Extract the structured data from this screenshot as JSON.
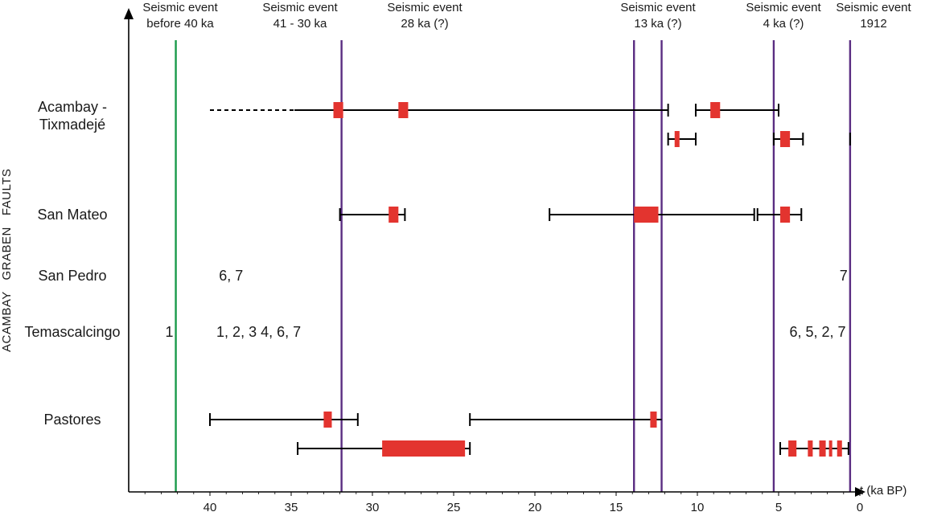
{
  "chart_data": {
    "type": "timeline",
    "group_label": "ACAMBAY   GRABEN   FAULTS",
    "xlabel": "t (ka BP)",
    "xlim": [
      44.5,
      -0.5
    ],
    "xticks": [
      40,
      35,
      30,
      25,
      20,
      15,
      10,
      5,
      0
    ],
    "tick_labels": [
      "40",
      "35",
      "30",
      "25",
      "20",
      "15",
      "10",
      "5",
      "0"
    ],
    "faults": [
      {
        "id": "acambay",
        "lines": [
          "Acambay -",
          "Tixmadejé"
        ]
      },
      {
        "id": "san-mateo",
        "lines": [
          "San Mateo"
        ]
      },
      {
        "id": "san-pedro",
        "lines": [
          "San Pedro"
        ]
      },
      {
        "id": "temascalcingo",
        "lines": [
          "Temascalcingo"
        ]
      },
      {
        "id": "pastores",
        "lines": [
          "Pastores"
        ]
      }
    ],
    "events": [
      {
        "id": "before-40",
        "lines": [
          "Seismic event",
          "before 40 ka"
        ],
        "t": 42.1,
        "color": "#1a9a4a"
      },
      {
        "id": "41-30",
        "lines": [
          "Seismic event",
          "41 - 30 ka"
        ],
        "t": 31.9,
        "color": "#5a2d82"
      },
      {
        "id": "28",
        "lines": [
          "Seismic event",
          "28 ka (?)"
        ],
        "t": null,
        "color": "#5a2d82"
      },
      {
        "id": "13",
        "lines": [
          "Seismic event",
          "13 ka (?)"
        ],
        "t": [
          13.9,
          12.2
        ],
        "color": "#5a2d82"
      },
      {
        "id": "4",
        "lines": [
          "Seismic event",
          "4 ka (?)"
        ],
        "t": 5.3,
        "color": "#5a2d82"
      },
      {
        "id": "1912",
        "lines": [
          "Seismic event",
          "1912"
        ],
        "t": 0.6,
        "color": "#5a2d82"
      }
    ],
    "ranges": [
      {
        "fault": "acambay",
        "row": 0,
        "from": 40.0,
        "to": 34.8,
        "dashed": true
      },
      {
        "fault": "acambay",
        "row": 0,
        "from": 34.8,
        "to": 11.8,
        "cap_start": false,
        "cap_end": true
      },
      {
        "fault": "acambay",
        "row": 0,
        "from": 10.1,
        "to": 5.0
      },
      {
        "fault": "acambay",
        "row": 1,
        "from": 11.8,
        "to": 10.1
      },
      {
        "fault": "acambay",
        "row": 1,
        "from": 5.3,
        "to": 3.5
      },
      {
        "fault": "acambay",
        "row": 1,
        "from": 0.6,
        "to": 0.6
      },
      {
        "fault": "san-mateo",
        "row": 0,
        "from": 32.0,
        "to": 28.0
      },
      {
        "fault": "san-mateo",
        "row": 0,
        "from": 19.1,
        "to": 6.5
      },
      {
        "fault": "san-mateo",
        "row": 0,
        "from": 6.3,
        "to": 3.6
      },
      {
        "fault": "pastores",
        "row": 0,
        "from": 40.0,
        "to": 30.9
      },
      {
        "fault": "pastores",
        "row": 0,
        "from": 24.0,
        "to": 12.2,
        "cap_start": true,
        "cap_end": false
      },
      {
        "fault": "pastores",
        "row": 1,
        "from": 34.6,
        "to": 24.0
      },
      {
        "fault": "pastores",
        "row": 1,
        "from": 4.9,
        "to": 0.7
      }
    ],
    "ages": [
      {
        "fault": "acambay",
        "row": 0,
        "from": 32.4,
        "to": 31.8
      },
      {
        "fault": "acambay",
        "row": 0,
        "from": 28.4,
        "to": 27.8
      },
      {
        "fault": "acambay",
        "row": 0,
        "from": 9.2,
        "to": 8.6
      },
      {
        "fault": "acambay",
        "row": 1,
        "from": 11.4,
        "to": 11.1
      },
      {
        "fault": "acambay",
        "row": 1,
        "from": 4.9,
        "to": 4.3
      },
      {
        "fault": "san-mateo",
        "row": 0,
        "from": 29.0,
        "to": 28.4
      },
      {
        "fault": "san-mateo",
        "row": 0,
        "from": 13.9,
        "to": 12.4
      },
      {
        "fault": "san-mateo",
        "row": 0,
        "from": 4.9,
        "to": 4.3
      },
      {
        "fault": "pastores",
        "row": 0,
        "from": 33.0,
        "to": 32.5
      },
      {
        "fault": "pastores",
        "row": 0,
        "from": 12.9,
        "to": 12.5
      },
      {
        "fault": "pastores",
        "row": 1,
        "from": 29.4,
        "to": 24.3
      },
      {
        "fault": "pastores",
        "row": 1,
        "from": 4.4,
        "to": 3.9
      },
      {
        "fault": "pastores",
        "row": 1,
        "from": 3.2,
        "to": 2.9
      },
      {
        "fault": "pastores",
        "row": 1,
        "from": 2.5,
        "to": 2.1
      },
      {
        "fault": "pastores",
        "row": 1,
        "from": 1.9,
        "to": 1.7
      },
      {
        "fault": "pastores",
        "row": 1,
        "from": 1.4,
        "to": 1.1
      }
    ],
    "notes": [
      {
        "fault": "san-pedro",
        "t": 38.7,
        "text": "6, 7"
      },
      {
        "fault": "san-pedro",
        "t": 1.0,
        "text": "7"
      },
      {
        "fault": "temascalcingo",
        "t": 42.5,
        "text": "1"
      },
      {
        "fault": "temascalcingo",
        "t": 37.0,
        "text": "1, 2, 3 4, 6, 7"
      },
      {
        "fault": "temascalcingo",
        "t": 2.6,
        "text": "6, 5, 2, 7"
      }
    ],
    "colors": {
      "age": "#e3342f",
      "range": "#000000",
      "event_old": "#1a9a4a",
      "event": "#5a2d82"
    }
  }
}
